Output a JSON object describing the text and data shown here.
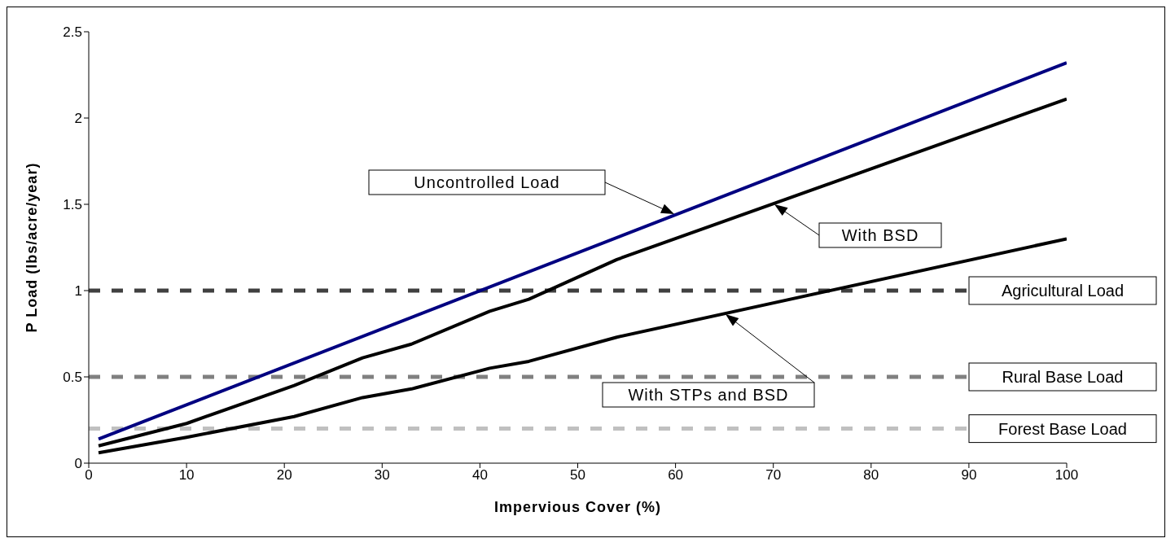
{
  "chart_data": {
    "type": "line",
    "xlabel": "Impervious Cover (%)",
    "ylabel": "P Load (lbs/acre/year)",
    "xlim": [
      0,
      100
    ],
    "ylim": [
      0,
      2.5
    ],
    "xticks": [
      0,
      10,
      20,
      30,
      40,
      50,
      60,
      70,
      80,
      90,
      100
    ],
    "yticks": [
      0,
      0.5,
      1,
      1.5,
      2,
      2.5
    ],
    "marker": "none",
    "line_style": "solid",
    "series": [
      {
        "color": "#000080",
        "x": [
          1,
          100
        ],
        "values": [
          0.14,
          2.32
        ]
      },
      {
        "color": "#000000",
        "x": [
          1,
          10,
          21,
          28,
          33,
          41,
          45,
          54,
          100
        ],
        "values": [
          0.1,
          0.23,
          0.45,
          0.61,
          0.69,
          0.88,
          0.95,
          1.18,
          2.11
        ]
      },
      {
        "color": "#000000",
        "x": [
          1,
          10,
          21,
          28,
          33,
          41,
          45,
          54,
          100
        ],
        "values": [
          0.06,
          0.15,
          0.27,
          0.38,
          0.43,
          0.55,
          0.59,
          0.73,
          1.3
        ]
      }
    ],
    "ref_lines": [
      {
        "axis": "y",
        "value": 1,
        "label": "Agricultural Load",
        "color": "#404040",
        "line_style": "dashed"
      },
      {
        "axis": "y",
        "value": 0.5,
        "label": "Rural Base Load",
        "color": "#808080",
        "line_style": "dashed"
      },
      {
        "axis": "y",
        "value": 0.2,
        "label": "Forest Base Load",
        "color": "#c0c0c0",
        "line_style": "dashed"
      }
    ],
    "annotations": [
      "Uncontrolled Load",
      "With BSD",
      "With STPs and BSD"
    ]
  }
}
